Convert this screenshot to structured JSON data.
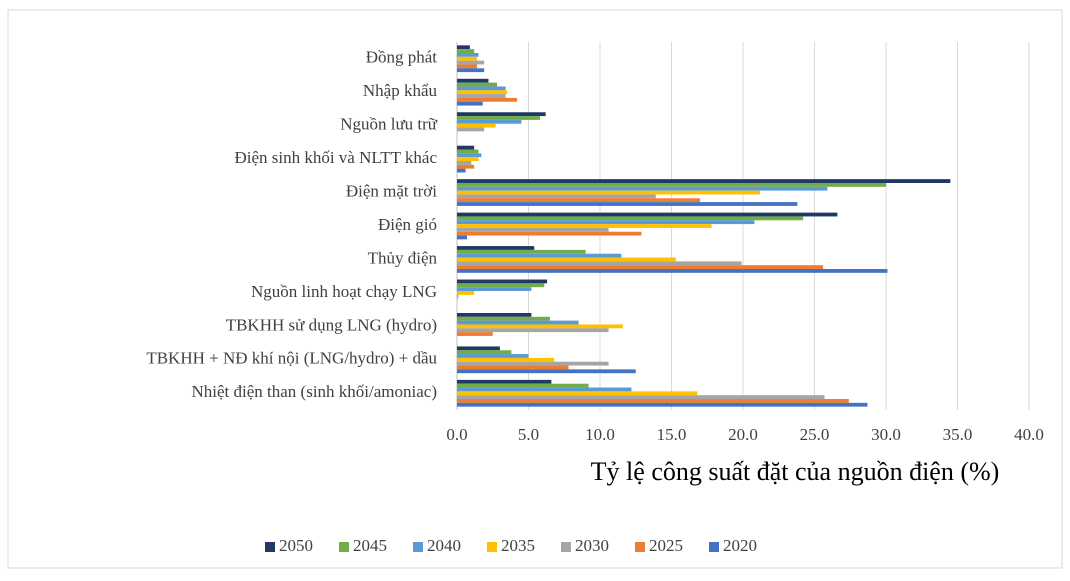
{
  "chart_data": {
    "type": "bar",
    "orientation": "horizontal",
    "x_label": "Tỷ lệ công suất đặt của nguồn điện (%)",
    "categories": [
      "Đồng phát",
      "Nhập khẩu",
      "Nguồn lưu trữ",
      "Điện sinh khối và NLTT khác",
      "Điện mặt trời",
      "Điện gió",
      "Thủy điện",
      "Nguồn linh hoạt chạy LNG",
      "TBKHH sử dụng LNG (hydro)",
      "TBKHH + NĐ khí nội (LNG/hydro) + dầu",
      "Nhiệt điện than (sinh khối/amoniac)"
    ],
    "series": [
      {
        "name": "2050",
        "color": "#203864",
        "values": [
          0.9,
          2.2,
          6.2,
          1.2,
          34.5,
          26.6,
          5.4,
          6.3,
          5.2,
          3.0,
          6.6
        ]
      },
      {
        "name": "2045",
        "color": "#70ad47",
        "values": [
          1.2,
          2.8,
          5.8,
          1.5,
          30.0,
          24.2,
          9.0,
          6.1,
          6.5,
          3.8,
          9.2
        ]
      },
      {
        "name": "2040",
        "color": "#5b9bd5",
        "values": [
          1.5,
          3.4,
          4.5,
          1.7,
          25.9,
          20.8,
          11.5,
          5.2,
          8.5,
          5.0,
          12.2
        ]
      },
      {
        "name": "2035",
        "color": "#ffc000",
        "values": [
          1.4,
          3.5,
          2.7,
          1.5,
          21.2,
          17.8,
          15.3,
          1.2,
          11.6,
          6.8,
          16.8
        ]
      },
      {
        "name": "2030",
        "color": "#a5a5a5",
        "values": [
          1.9,
          3.4,
          1.9,
          1.0,
          13.9,
          10.6,
          19.9,
          0.1,
          10.6,
          10.6,
          25.7
        ]
      },
      {
        "name": "2025",
        "color": "#ed7d31",
        "values": [
          1.4,
          4.2,
          0,
          1.2,
          17.0,
          12.9,
          25.6,
          0,
          2.5,
          7.8,
          27.4
        ]
      },
      {
        "name": "2020",
        "color": "#4472c4",
        "values": [
          1.9,
          1.8,
          0,
          0.6,
          23.8,
          0.7,
          30.1,
          0,
          0,
          12.5,
          28.7
        ]
      }
    ],
    "xlim": [
      0,
      40
    ],
    "xticks": [
      {
        "value": 0,
        "label": "0.0"
      },
      {
        "value": 5,
        "label": "5.0"
      },
      {
        "value": 10,
        "label": "10.0"
      },
      {
        "value": 15,
        "label": "15.0"
      },
      {
        "value": 20,
        "label": "20.0"
      },
      {
        "value": 25,
        "label": "25.0"
      },
      {
        "value": 30,
        "label": "30.0"
      },
      {
        "value": 35,
        "label": "35.0"
      },
      {
        "value": 40,
        "label": "40.0"
      }
    ],
    "grid": true,
    "legend": "bottom"
  }
}
